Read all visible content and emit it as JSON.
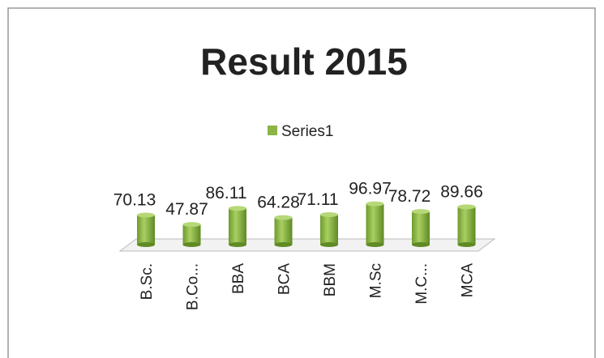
{
  "chart_data": {
    "type": "bar",
    "title": "Result 2015",
    "categories": [
      "B.Sc.",
      "B.Co...",
      "BBA",
      "BCA",
      "BBM",
      "M.Sc",
      "M.C...",
      "MCA"
    ],
    "series": [
      {
        "name": "Series1",
        "color": "#8db446",
        "values": [
          70.13,
          47.87,
          86.11,
          64.28,
          71.11,
          96.97,
          78.72,
          89.66
        ]
      }
    ],
    "legend": "top"
  }
}
